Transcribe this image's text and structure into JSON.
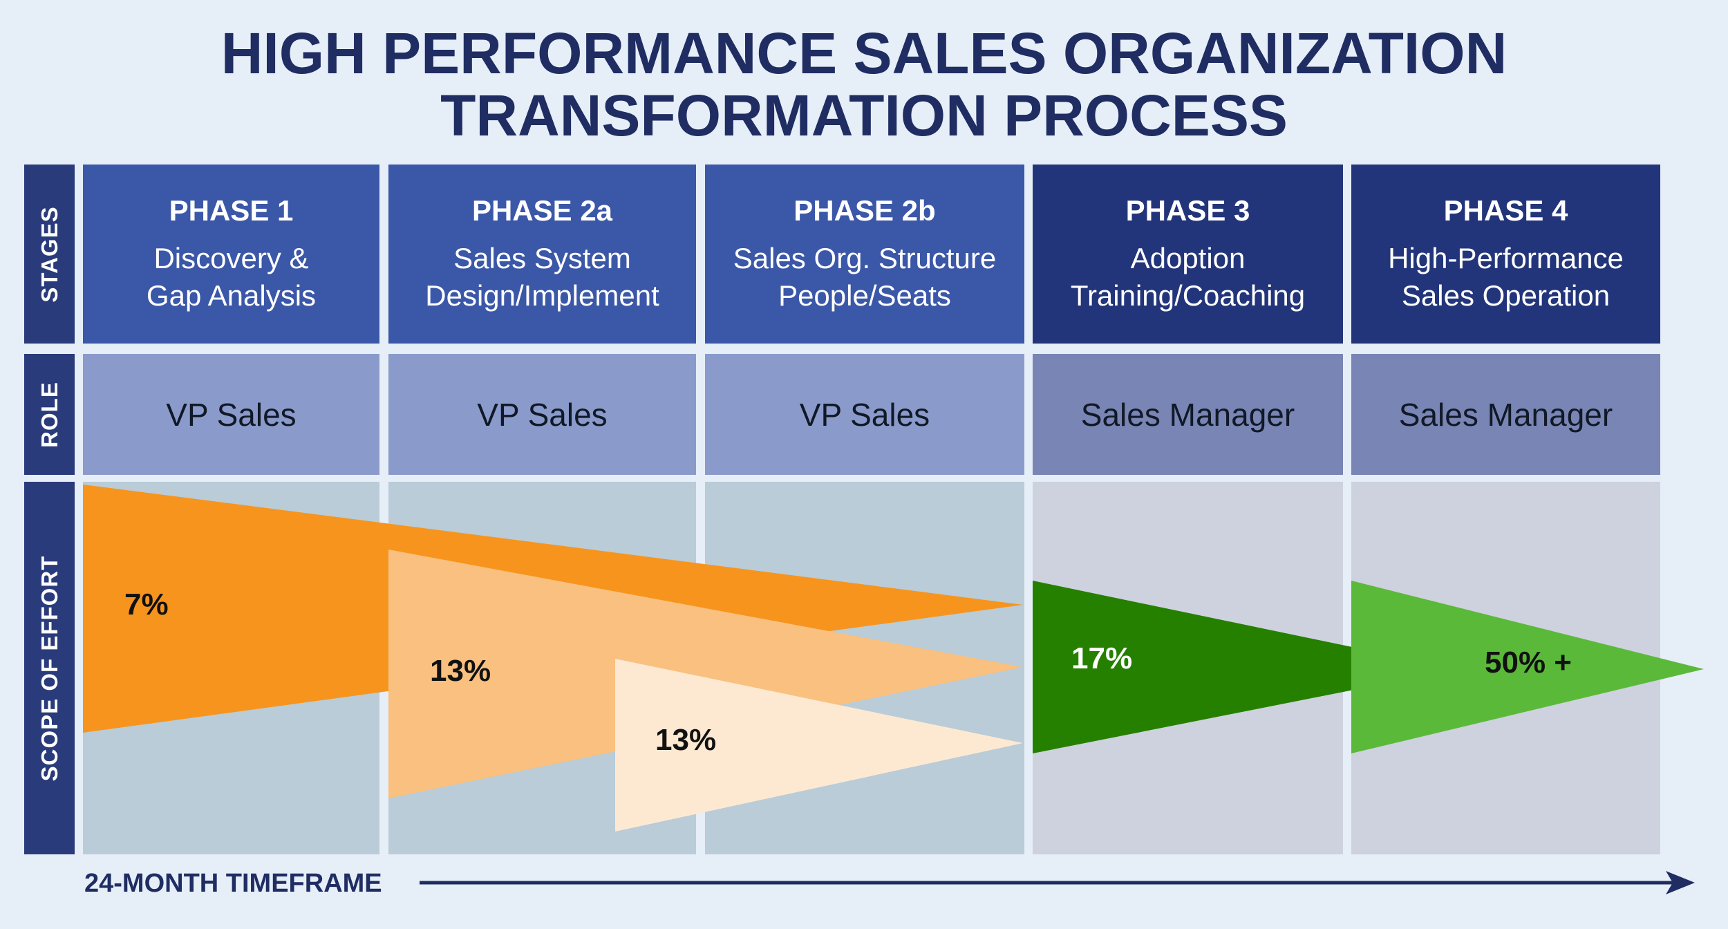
{
  "title": {
    "line1": "HIGH PERFORMANCE SALES ORGANIZATION",
    "line2": "TRANSFORMATION PROCESS"
  },
  "row_labels": {
    "stages": "STAGES",
    "role": "ROLE",
    "scope": "SCOPE OF EFFORT"
  },
  "phases": [
    {
      "phase": "PHASE 1",
      "line1": "Discovery &",
      "line2": "Gap Analysis",
      "role": "VP Sales"
    },
    {
      "phase": "PHASE 2a",
      "line1": "Sales System",
      "line2": "Design/Implement",
      "role": "VP Sales"
    },
    {
      "phase": "PHASE 2b",
      "line1": "Sales Org. Structure",
      "line2": "People/Seats",
      "role": "VP Sales"
    },
    {
      "phase": "PHASE 3",
      "line1": "Adoption",
      "line2": "Training/Coaching",
      "role": "Sales Manager"
    },
    {
      "phase": "PHASE 4",
      "line1": "High-Performance",
      "line2": "Sales Operation",
      "role": "Sales Manager"
    }
  ],
  "effort": [
    {
      "label": "7%",
      "color": "#f7941d",
      "text_color": "#111111"
    },
    {
      "label": "13%",
      "color": "#f9c07f",
      "text_color": "#111111"
    },
    {
      "label": "13%",
      "color": "#fde9d2",
      "text_color": "#111111"
    },
    {
      "label": "17%",
      "color": "#268000",
      "text_color": "#ffffff"
    },
    {
      "label": "50% +",
      "color": "#5bb93a",
      "text_color": "#111111"
    }
  ],
  "timeframe": "24-MONTH TIMEFRAME",
  "colors": {
    "background": "#e6eef8",
    "title": "#1f2d62",
    "side_label": "#2a3b7b",
    "stage_light": "#3b57a8",
    "stage_dark": "#23357a",
    "role_light": "#8a9bcb",
    "role_dark": "#7985b4",
    "scope_light": "#b9ccd8",
    "scope_dark": "#cdd2de"
  }
}
